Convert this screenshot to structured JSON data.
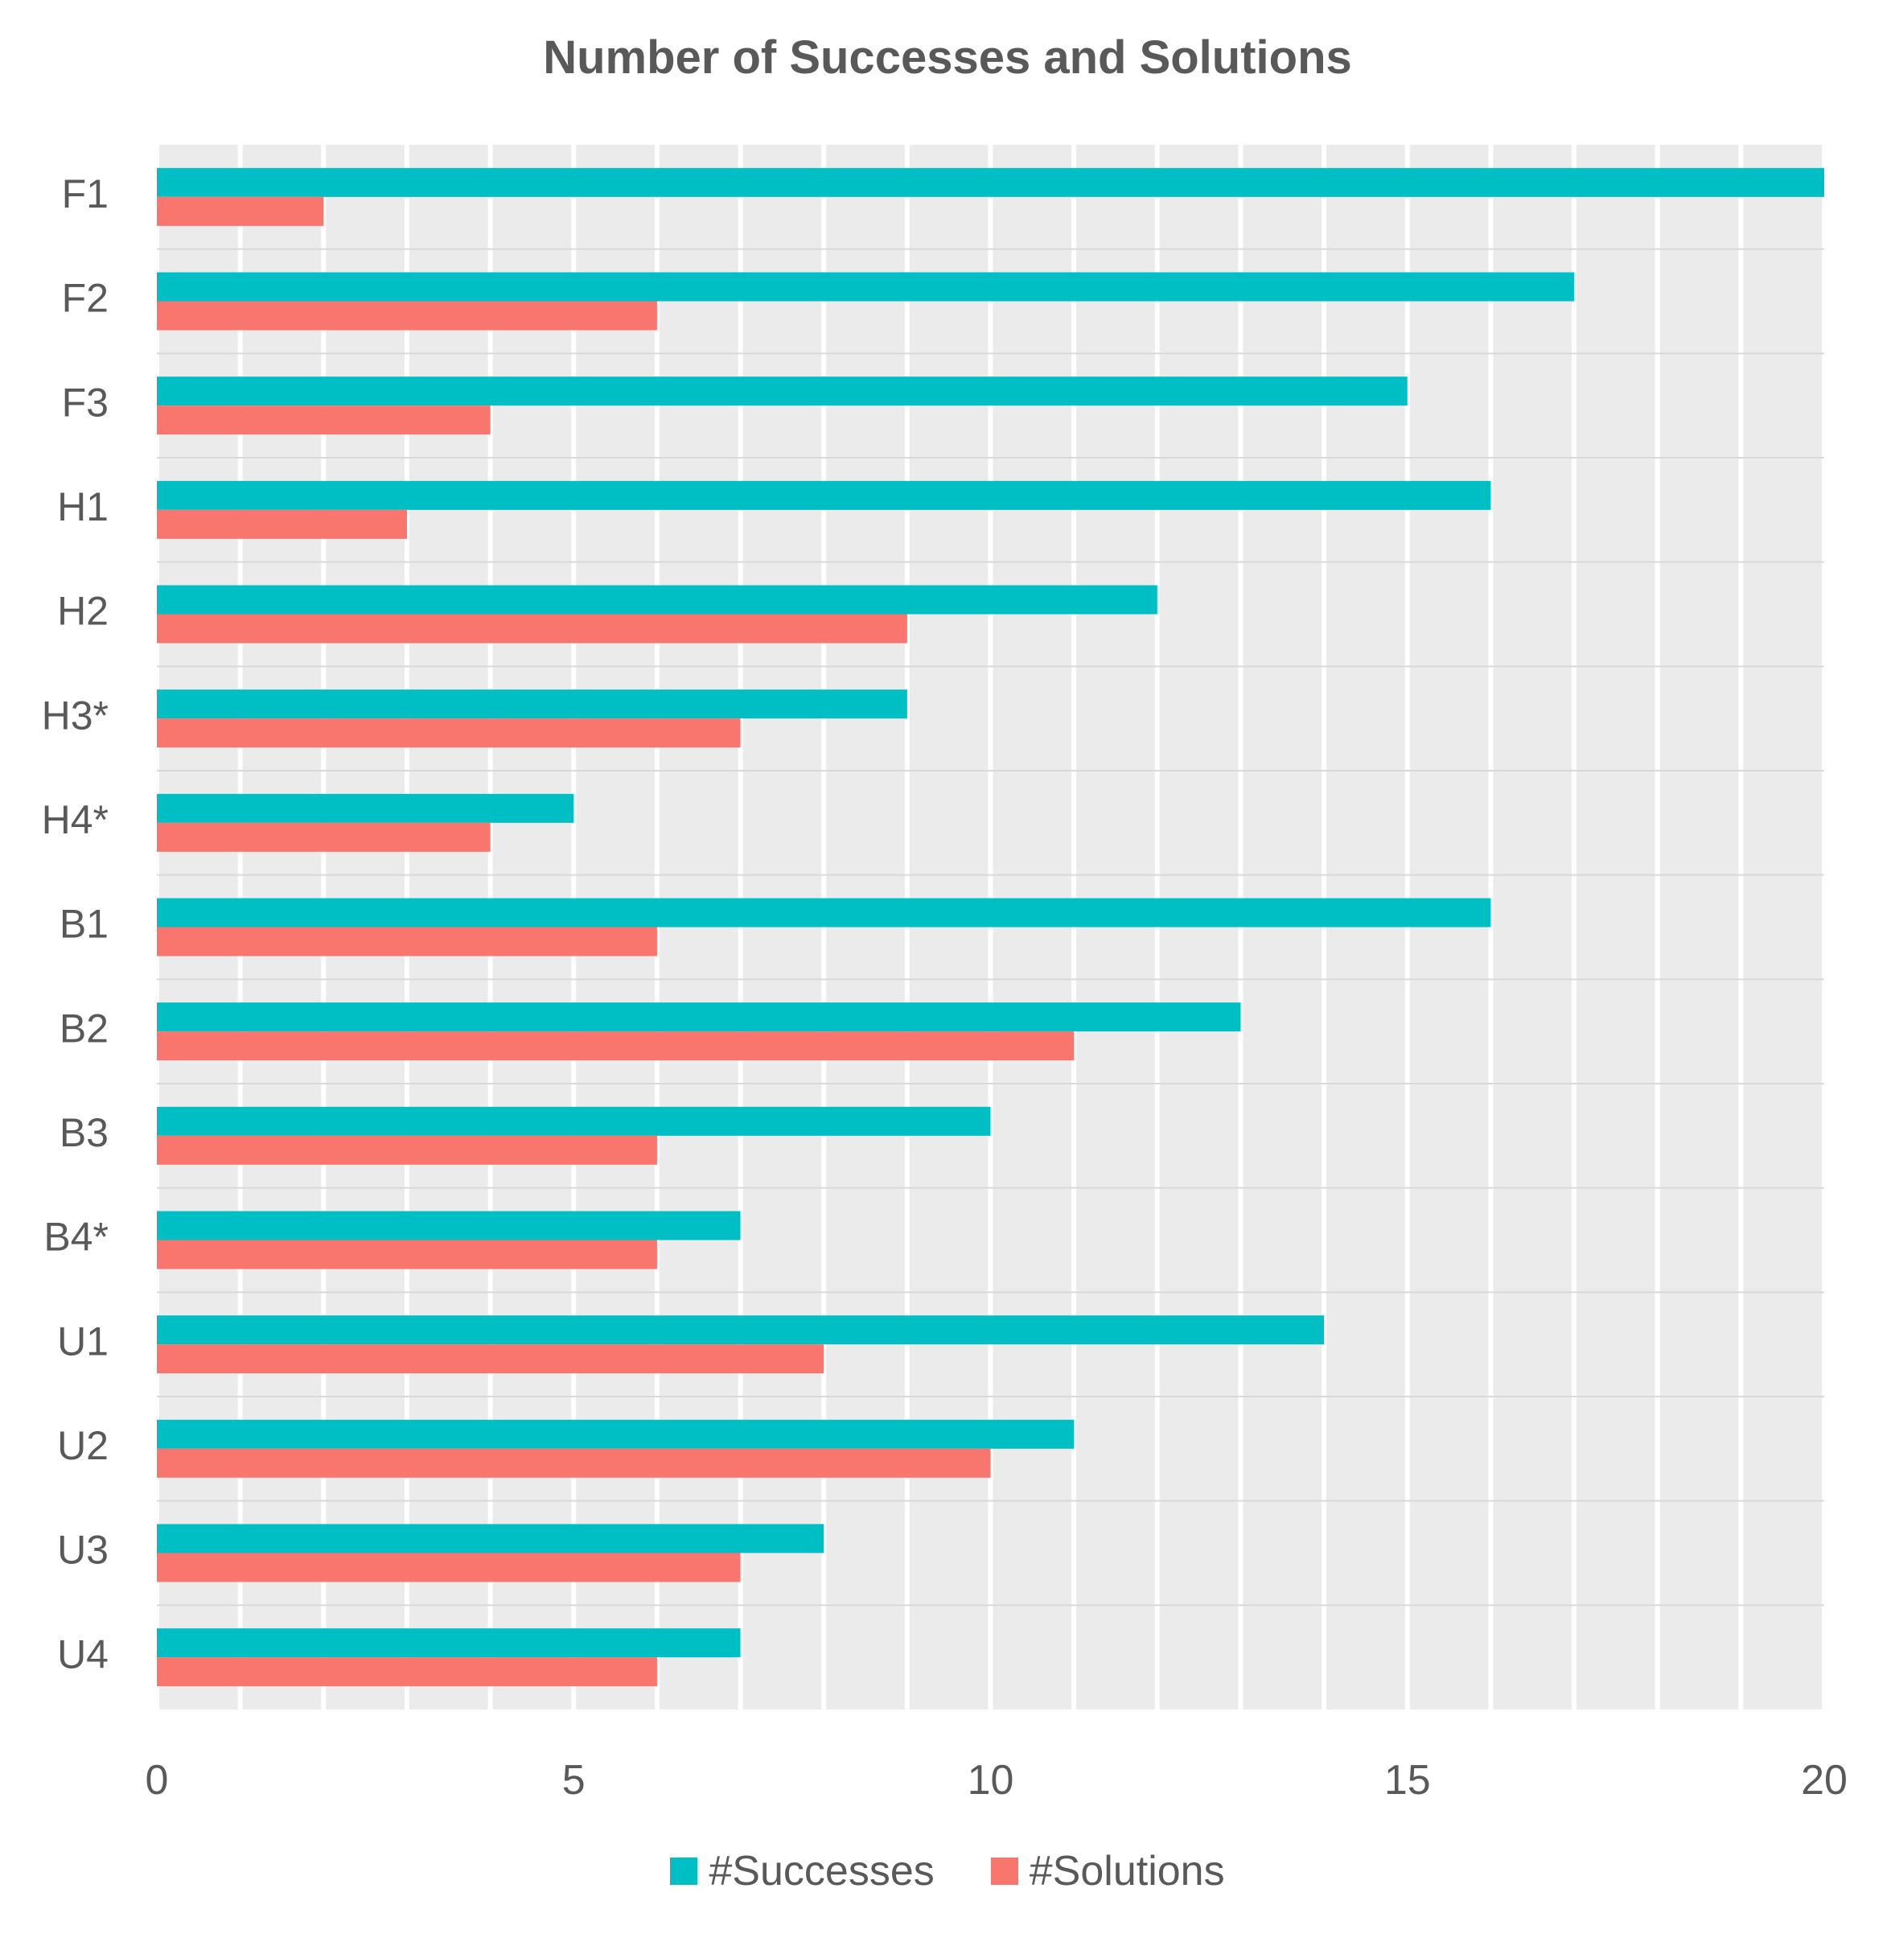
{
  "chart_data": {
    "type": "bar",
    "orientation": "horizontal",
    "title": "Number of Successes and Solutions",
    "categories": [
      "F1",
      "F2",
      "F3",
      "H1",
      "H2",
      "H3*",
      "H4*",
      "B1",
      "B2",
      "B3",
      "B4*",
      "U1",
      "U2",
      "U3",
      "U4"
    ],
    "series": [
      {
        "name": "#Successes",
        "color": "#00BFC4",
        "values": [
          20,
          17,
          15,
          16,
          12,
          9,
          5,
          16,
          13,
          10,
          7,
          14,
          11,
          8,
          7
        ]
      },
      {
        "name": "#Solutions",
        "color": "#F8766D",
        "values": [
          2,
          6,
          4,
          3,
          9,
          7,
          4,
          6,
          11,
          6,
          6,
          8,
          10,
          7,
          6
        ]
      }
    ],
    "xlim": [
      0,
      20
    ],
    "xticks": [
      0,
      5,
      10,
      15,
      20
    ],
    "grid": true,
    "legend_position": "bottom",
    "background": "#EBEBEB",
    "text_color": "#595959"
  }
}
